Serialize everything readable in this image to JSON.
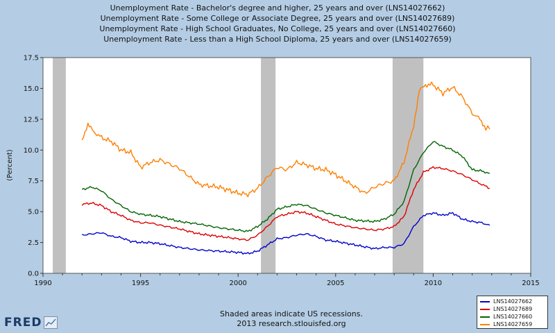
{
  "titles": [
    "Unemployment Rate - Bachelor's degree and higher, 25 years and over (LNS14027662)",
    "Unemployment Rate - Some College or Associate Degree, 25 years and over (LNS14027689)",
    "Unemployment Rate - High School Graduates, No College, 25 years and over (LNS14027660)",
    "Unemployment Rate - Less than a High School Diploma, 25 years and over (LNS14027659)"
  ],
  "footer": {
    "line1": "Shaded areas indicate US recessions.",
    "line2": "2013 research.stlouisfed.org"
  },
  "logo": {
    "text": "FRED",
    "icon": "chart-icon"
  },
  "colors": {
    "background": "#b4cde4",
    "plot_bg": "#ffffff",
    "recession": "#c0c0c0",
    "blue": "#0000cc",
    "red": "#dd0000",
    "green": "#006400",
    "orange": "#ff7f00"
  },
  "chart_data": {
    "type": "line",
    "title": "",
    "xlabel": "",
    "ylabel": "(Percent)",
    "xlim": [
      1990,
      2015
    ],
    "ylim": [
      0,
      17.5
    ],
    "x_ticks": [
      "1990",
      "1995",
      "2000",
      "2005",
      "2010",
      "2015"
    ],
    "y_ticks": [
      "0.0",
      "2.5",
      "5.0",
      "7.5",
      "10.0",
      "12.5",
      "15.0",
      "17.5"
    ],
    "grid": false,
    "legend_position": "bottom-right",
    "recessions": [
      [
        1990.5,
        1991.17
      ],
      [
        2001.17,
        2001.92
      ],
      [
        2007.92,
        2009.5
      ]
    ],
    "series": [
      {
        "name": "LNS14027662",
        "color": "#0000cc",
        "x": [
          1992.0,
          1992.5,
          1993.0,
          1993.5,
          1994.0,
          1994.5,
          1995.0,
          1995.5,
          1996.0,
          1997.0,
          1998.0,
          1999.0,
          2000.0,
          2000.5,
          2001.0,
          2001.5,
          2002.0,
          2002.5,
          2003.0,
          2003.5,
          2004.0,
          2004.5,
          2005.0,
          2006.0,
          2007.0,
          2007.5,
          2008.0,
          2008.5,
          2009.0,
          2009.5,
          2010.0,
          2010.5,
          2011.0,
          2011.5,
          2012.0,
          2012.5,
          2012.9
        ],
        "values": [
          3.1,
          3.2,
          3.3,
          3.0,
          2.9,
          2.6,
          2.5,
          2.5,
          2.4,
          2.1,
          1.9,
          1.8,
          1.7,
          1.6,
          1.8,
          2.3,
          2.8,
          2.9,
          3.1,
          3.2,
          3.0,
          2.7,
          2.6,
          2.3,
          2.0,
          2.1,
          2.1,
          2.4,
          3.8,
          4.7,
          4.9,
          4.7,
          4.9,
          4.4,
          4.2,
          4.1,
          3.9
        ]
      },
      {
        "name": "LNS14027689",
        "color": "#dd0000",
        "x": [
          1992.0,
          1992.5,
          1993.0,
          1993.5,
          1994.0,
          1994.5,
          1995.0,
          1995.5,
          1996.0,
          1997.0,
          1998.0,
          1999.0,
          2000.0,
          2000.5,
          2001.0,
          2001.5,
          2002.0,
          2002.5,
          2003.0,
          2003.5,
          2004.0,
          2004.5,
          2005.0,
          2006.0,
          2007.0,
          2007.5,
          2008.0,
          2008.5,
          2009.0,
          2009.5,
          2010.0,
          2010.5,
          2011.0,
          2011.5,
          2012.0,
          2012.5,
          2012.9
        ],
        "values": [
          5.6,
          5.7,
          5.5,
          5.0,
          4.7,
          4.3,
          4.1,
          4.1,
          3.9,
          3.6,
          3.2,
          3.0,
          2.8,
          2.7,
          3.1,
          3.8,
          4.6,
          4.8,
          5.0,
          4.9,
          4.6,
          4.3,
          4.0,
          3.7,
          3.5,
          3.6,
          3.8,
          4.6,
          6.8,
          8.2,
          8.6,
          8.5,
          8.3,
          8.0,
          7.6,
          7.2,
          6.9
        ]
      },
      {
        "name": "LNS14027660",
        "color": "#006400",
        "x": [
          1992.0,
          1992.5,
          1993.0,
          1993.5,
          1994.0,
          1994.5,
          1995.0,
          1995.5,
          1996.0,
          1997.0,
          1998.0,
          1999.0,
          2000.0,
          2000.5,
          2001.0,
          2001.5,
          2002.0,
          2002.5,
          2003.0,
          2003.5,
          2004.0,
          2004.5,
          2005.0,
          2006.0,
          2007.0,
          2007.5,
          2008.0,
          2008.5,
          2009.0,
          2009.5,
          2010.0,
          2010.5,
          2011.0,
          2011.5,
          2012.0,
          2012.5,
          2012.9
        ],
        "values": [
          6.8,
          7.0,
          6.7,
          6.0,
          5.5,
          5.0,
          4.8,
          4.7,
          4.6,
          4.2,
          4.0,
          3.7,
          3.5,
          3.4,
          3.8,
          4.4,
          5.2,
          5.4,
          5.6,
          5.5,
          5.2,
          4.9,
          4.7,
          4.3,
          4.2,
          4.4,
          4.8,
          5.8,
          8.4,
          9.8,
          10.7,
          10.3,
          10.0,
          9.5,
          8.4,
          8.3,
          8.1
        ]
      },
      {
        "name": "LNS14027659",
        "color": "#ff7f00",
        "x": [
          1992.0,
          1992.3,
          1992.6,
          1993.0,
          1993.5,
          1994.0,
          1994.5,
          1995.0,
          1995.5,
          1996.0,
          1997.0,
          1998.0,
          1999.0,
          2000.0,
          2000.5,
          2001.0,
          2001.5,
          2002.0,
          2002.5,
          2003.0,
          2003.5,
          2004.0,
          2004.5,
          2005.0,
          2005.5,
          2006.0,
          2006.5,
          2007.0,
          2007.5,
          2008.0,
          2008.5,
          2009.0,
          2009.3,
          2009.6,
          2010.0,
          2010.5,
          2011.0,
          2011.5,
          2012.0,
          2012.4,
          2012.7,
          2012.9
        ],
        "values": [
          10.9,
          12.0,
          11.5,
          11.0,
          10.7,
          10.0,
          9.8,
          8.6,
          9.0,
          9.2,
          8.5,
          7.2,
          7.0,
          6.5,
          6.4,
          6.9,
          7.8,
          8.6,
          8.4,
          9.0,
          8.8,
          8.5,
          8.4,
          8.0,
          7.5,
          7.0,
          6.5,
          7.0,
          7.3,
          7.5,
          9.0,
          12.0,
          14.8,
          15.3,
          15.3,
          14.6,
          15.1,
          14.3,
          13.0,
          12.5,
          11.8,
          11.7
        ]
      }
    ]
  }
}
